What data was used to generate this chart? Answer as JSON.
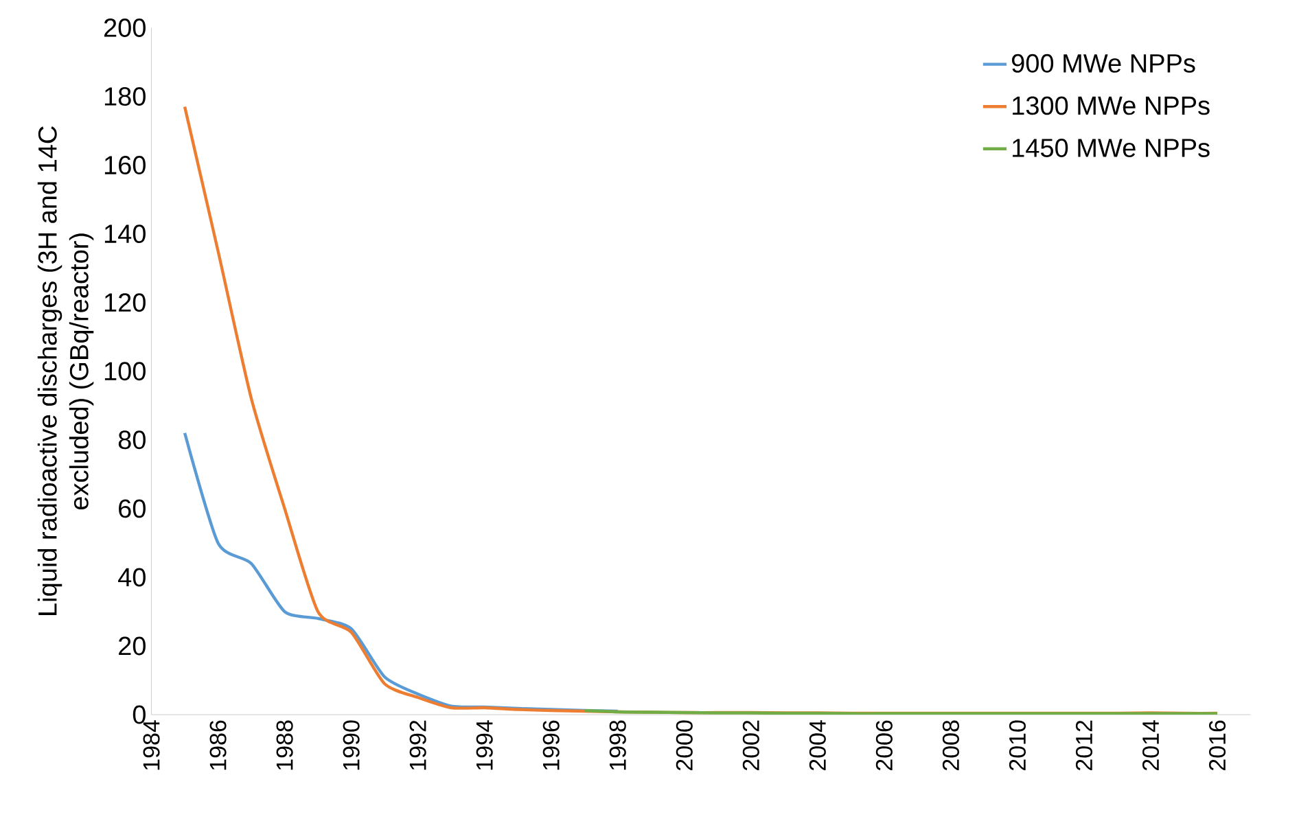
{
  "chart_data": {
    "type": "line",
    "ylabel": "Liquid radioactive discharges (3H and 14C excluded) (GBq/reactor)",
    "x": [
      1985,
      1986,
      1987,
      1988,
      1989,
      1990,
      1991,
      1992,
      1993,
      1994,
      1995,
      1996,
      1997,
      1998,
      1999,
      2000,
      2001,
      2002,
      2003,
      2004,
      2005,
      2006,
      2007,
      2008,
      2009,
      2010,
      2011,
      2012,
      2013,
      2014,
      2015,
      2016
    ],
    "series": [
      {
        "name": "900 MWe NPPs",
        "color": "#5b9bd5",
        "values": [
          82,
          50,
          44,
          30,
          28,
          25,
          11,
          6,
          2.5,
          2.2,
          1.8,
          1.5,
          1.2,
          1,
          null,
          null,
          null,
          null,
          null,
          null,
          null,
          null,
          null,
          null,
          null,
          null,
          null,
          null,
          null,
          null,
          null,
          null
        ]
      },
      {
        "name": "1300 MWe NPPs",
        "color": "#ed7d31",
        "values": [
          177,
          135,
          92,
          60,
          30,
          24,
          9,
          5,
          2,
          2,
          1.5,
          1.2,
          1,
          0.8,
          0.7,
          0.6,
          0.6,
          0.6,
          0.5,
          0.5,
          0.4,
          0.4,
          0.4,
          0.4,
          0.4,
          0.4,
          0.4,
          0.4,
          0.4,
          0.5,
          0.4,
          0.4
        ]
      },
      {
        "name": "1450 MWe NPPs",
        "color": "#70ad47",
        "values": [
          null,
          null,
          null,
          null,
          null,
          null,
          null,
          null,
          null,
          null,
          null,
          null,
          1.2,
          0.8,
          0.7,
          0.6,
          0.5,
          0.5,
          0.4,
          0.4,
          0.3,
          0.3,
          0.3,
          0.3,
          0.3,
          0.3,
          0.3,
          0.3,
          0.3,
          0.3,
          0.3,
          0.3
        ]
      }
    ],
    "xlim": [
      1984,
      2017
    ],
    "xticks": [
      1984,
      1986,
      1988,
      1990,
      1992,
      1994,
      1996,
      1998,
      2000,
      2002,
      2004,
      2006,
      2008,
      2010,
      2012,
      2014,
      2016
    ],
    "ylim": [
      0,
      200
    ],
    "yticks": [
      0,
      20,
      40,
      60,
      80,
      100,
      120,
      140,
      160,
      180,
      200
    ],
    "legend": "top right",
    "grid": false,
    "marker": "none",
    "line_style": "solid"
  }
}
